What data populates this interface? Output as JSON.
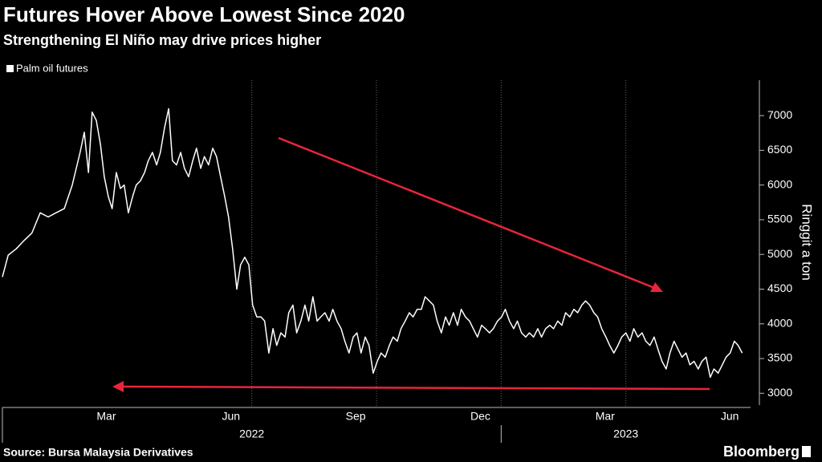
{
  "chart_data": {
    "type": "line",
    "title": "Futures Hover Above Lowest Since 2020",
    "subtitle": "Strengthening El Niño may drive prices higher",
    "y_axis_label": "Ringgit a ton",
    "source": "Source: Bursa Malaysia Derivatives",
    "brand": "Bloomberg",
    "series": [
      {
        "name": "Palm oil futures",
        "color": "#ffffff",
        "x": [
          0,
          0.14,
          0.33,
          0.52,
          0.71,
          0.91,
          1.1,
          1.29,
          1.49,
          1.68,
          1.87,
          1.97,
          2.07,
          2.16,
          2.26,
          2.36,
          2.45,
          2.55,
          2.64,
          2.74,
          2.84,
          2.93,
          3.03,
          3.13,
          3.22,
          3.32,
          3.42,
          3.51,
          3.61,
          3.71,
          3.8,
          3.9,
          4.0,
          4.09,
          4.19,
          4.29,
          4.38,
          4.48,
          4.58,
          4.67,
          4.77,
          4.86,
          4.96,
          5.06,
          5.15,
          5.25,
          5.35,
          5.44,
          5.54,
          5.64,
          5.73,
          5.83,
          5.93,
          6.02,
          6.12,
          6.22,
          6.31,
          6.41,
          6.51,
          6.6,
          6.7,
          6.8,
          6.89,
          6.99,
          7.08,
          7.18,
          7.28,
          7.37,
          7.47,
          7.57,
          7.66,
          7.76,
          7.86,
          7.95,
          8.05,
          8.15,
          8.24,
          8.34,
          8.44,
          8.53,
          8.63,
          8.73,
          8.82,
          8.92,
          9.02,
          9.11,
          9.21,
          9.31,
          9.4,
          9.5,
          9.59,
          9.69,
          9.79,
          9.88,
          9.98,
          10.08,
          10.17,
          10.27,
          10.37,
          10.46,
          10.56,
          10.66,
          10.75,
          10.85,
          10.95,
          11.04,
          11.14,
          11.24,
          11.33,
          11.43,
          11.53,
          11.62,
          11.72,
          11.81,
          11.91,
          12.01,
          12.1,
          12.2,
          12.3,
          12.39,
          12.49,
          12.59,
          12.68,
          12.78,
          12.88,
          12.97,
          13.07,
          13.17,
          13.26,
          13.36,
          13.46,
          13.55,
          13.65,
          13.75,
          13.84,
          13.94,
          14.03,
          14.13,
          14.23,
          14.32,
          14.42,
          14.52,
          14.61,
          14.71,
          14.81,
          14.9,
          15.0,
          15.1,
          15.19,
          15.29,
          15.39,
          15.48,
          15.58,
          15.68,
          15.77,
          15.87,
          15.97,
          16.06,
          16.16,
          16.25,
          16.35,
          16.45,
          16.54,
          16.64,
          16.74,
          16.83,
          16.93,
          17.03,
          17.12,
          17.22,
          17.32,
          17.41,
          17.51,
          17.61,
          17.7,
          17.8
        ],
        "values": [
          4675,
          4990,
          5080,
          5200,
          5310,
          5600,
          5540,
          5600,
          5660,
          6000,
          6470,
          6760,
          6180,
          7050,
          6930,
          6580,
          6120,
          5830,
          5660,
          6180,
          5950,
          6000,
          5600,
          5830,
          6000,
          6060,
          6180,
          6350,
          6470,
          6290,
          6470,
          6820,
          7100,
          6350,
          6290,
          6470,
          6240,
          6120,
          6350,
          6530,
          6240,
          6410,
          6290,
          6530,
          6410,
          6120,
          5830,
          5540,
          5080,
          4500,
          4850,
          4960,
          4850,
          4270,
          4100,
          4100,
          4040,
          3580,
          3930,
          3690,
          3870,
          3810,
          4160,
          4270,
          3870,
          4040,
          4270,
          4040,
          4390,
          4040,
          4100,
          4160,
          4040,
          4210,
          4040,
          3930,
          3750,
          3580,
          3810,
          3870,
          3580,
          3810,
          3690,
          3290,
          3460,
          3580,
          3520,
          3690,
          3810,
          3750,
          3930,
          4040,
          4160,
          4100,
          4210,
          4210,
          4390,
          4330,
          4270,
          4040,
          3870,
          4100,
          3980,
          4160,
          3980,
          4210,
          4100,
          4040,
          3930,
          3810,
          3980,
          3930,
          3870,
          3930,
          4040,
          4100,
          4210,
          4040,
          3930,
          4040,
          3870,
          3810,
          3870,
          3810,
          3930,
          3810,
          3930,
          3980,
          3930,
          4040,
          3980,
          4160,
          4100,
          4210,
          4160,
          4270,
          4330,
          4270,
          4160,
          4100,
          3930,
          3810,
          3690,
          3580,
          3690,
          3810,
          3870,
          3750,
          3930,
          3810,
          3870,
          3750,
          3690,
          3810,
          3640,
          3460,
          3350,
          3580,
          3750,
          3640,
          3520,
          3580,
          3410,
          3460,
          3350,
          3460,
          3520,
          3230,
          3350,
          3290,
          3410,
          3520,
          3580,
          3750,
          3690,
          3580
        ]
      }
    ],
    "xlim": [
      0,
      18
    ],
    "xticks": [
      {
        "value": 2.5,
        "label": "Mar"
      },
      {
        "value": 5.5,
        "label": "Jun"
      },
      {
        "value": 8.5,
        "label": "Sep"
      },
      {
        "value": 11.5,
        "label": "Dec"
      },
      {
        "value": 14.5,
        "label": "Mar"
      },
      {
        "value": 17.5,
        "label": "Jun"
      }
    ],
    "xgrid": [
      6,
      9,
      12,
      15
    ],
    "xgroups": [
      {
        "value": 6,
        "label": "2022"
      },
      {
        "value": 15,
        "label": "2023"
      }
    ],
    "ylim": [
      2830,
      7510
    ],
    "yticks": [
      3000,
      3500,
      4000,
      4500,
      5000,
      5500,
      6000,
      6500,
      7000
    ]
  }
}
